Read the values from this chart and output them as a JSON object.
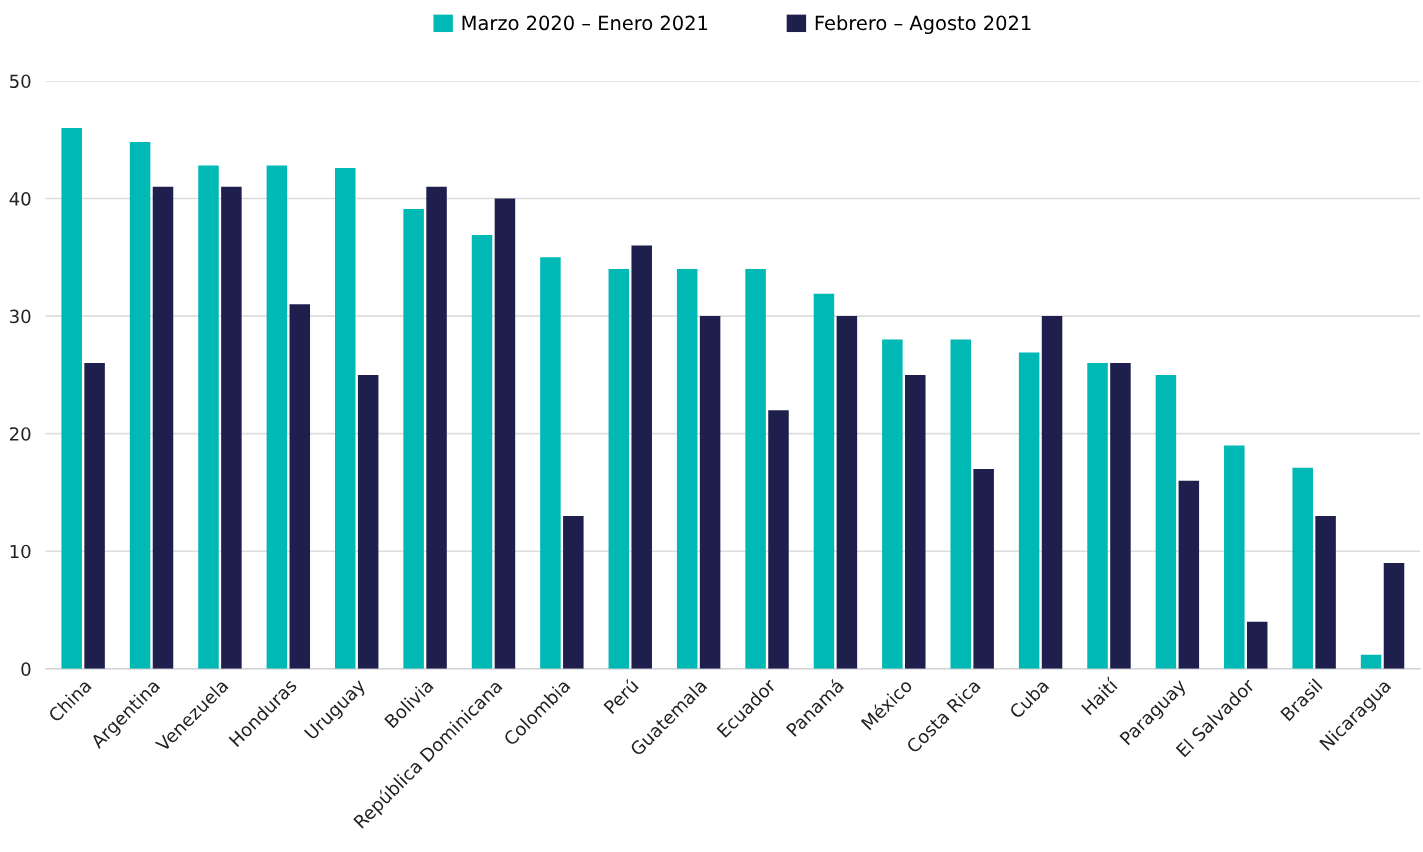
{
  "chart_data": {
    "type": "bar",
    "categories": [
      "China",
      "Argentina",
      "Venezuela",
      "Honduras",
      "Uruguay",
      "Bolivia",
      "República Dominicana",
      "Colombia",
      "Perú",
      "Guatemala",
      "Ecuador",
      "Panamá",
      "México",
      "Costa Rica",
      "Cuba",
      "Haití",
      "Paraguay",
      "El Salvador",
      "Brasil",
      "Nicaragua"
    ],
    "series": [
      {
        "name": "Marzo 2020 – Enero 2021",
        "color": "#00b8b4",
        "values": [
          46,
          44.8,
          42.8,
          42.8,
          42.6,
          39.1,
          36.9,
          35,
          34,
          34,
          34,
          31.9,
          28,
          28,
          26.9,
          26,
          25,
          19,
          17.1,
          1.2
        ]
      },
      {
        "name": "Febrero – Agosto 2021",
        "color": "#1f1f4d",
        "values": [
          26,
          41,
          41,
          31,
          25,
          41,
          40,
          13,
          36,
          30,
          22,
          30,
          25,
          17,
          30,
          26,
          16,
          4,
          13,
          9
        ]
      }
    ],
    "ylim": [
      0,
      50
    ],
    "yticks": [
      0,
      10,
      20,
      30,
      40,
      50
    ],
    "grid": "y",
    "legend": "top"
  }
}
